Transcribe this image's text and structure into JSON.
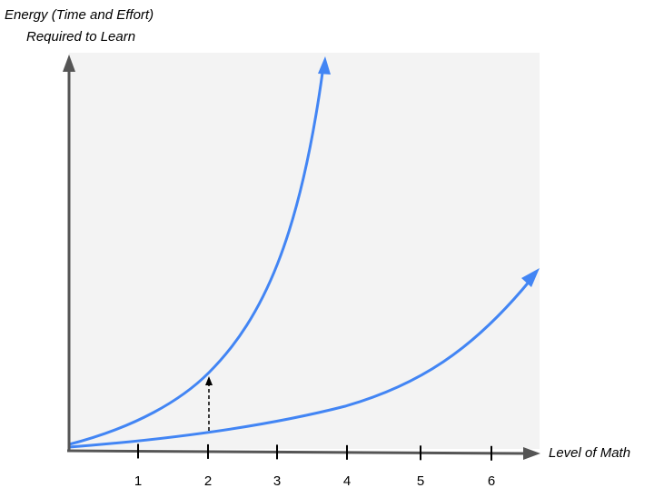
{
  "chart_data": {
    "type": "line",
    "title": "",
    "ylabel_lines": [
      "Energy (Time and Effort)",
      "Required to Learn"
    ],
    "xlabel": "Level of Math",
    "x_ticks": [
      "1",
      "2",
      "3",
      "4",
      "5",
      "6"
    ],
    "grid": false,
    "colors": {
      "curve": "#4285f4",
      "axis": "#555555",
      "plot_bg": "#f3f3f3",
      "arrow": "#000000"
    }
  }
}
